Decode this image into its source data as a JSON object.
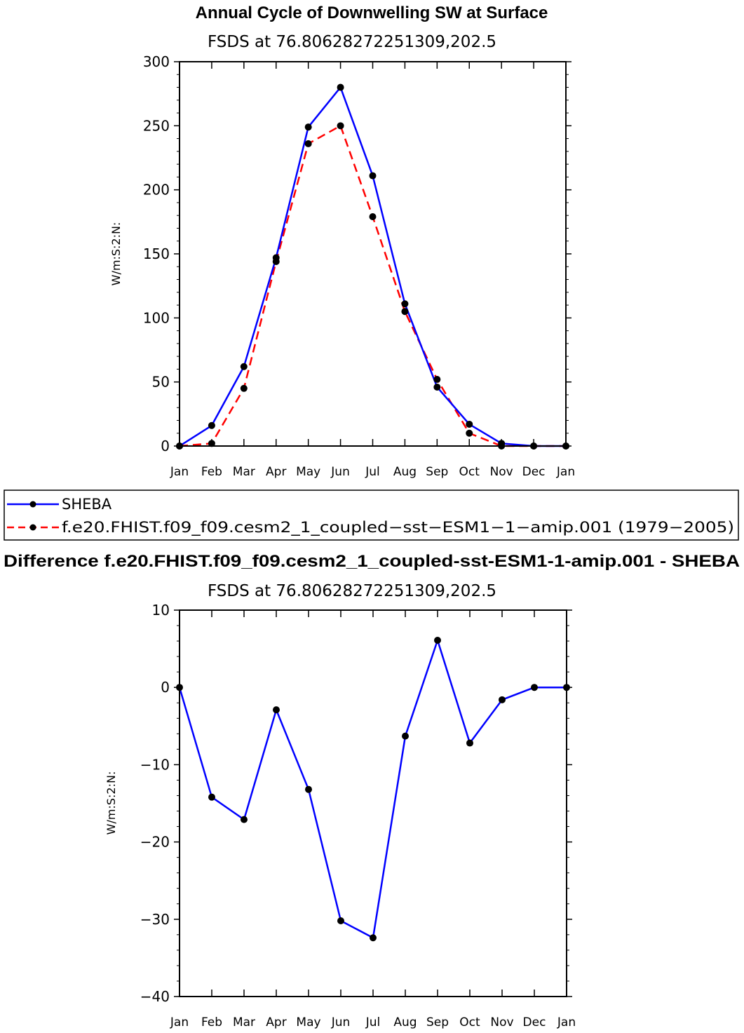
{
  "chart_data": [
    {
      "type": "line",
      "title": "Annual Cycle of Downwelling SW at Surface",
      "subtitle": "FSDS at 76.80628272251309,202.5",
      "xlabel": "",
      "ylabel": "W/m:S:2:N:",
      "categories": [
        "Jan",
        "Feb",
        "Mar",
        "Apr",
        "May",
        "Jun",
        "Jul",
        "Aug",
        "Sep",
        "Oct",
        "Nov",
        "Dec",
        "Jan"
      ],
      "ylim": [
        0,
        300
      ],
      "yticks": [
        0,
        50,
        100,
        150,
        200,
        250,
        300
      ],
      "ytick_labels": [
        "0",
        "50",
        "100",
        "150",
        "200",
        "250",
        "300"
      ],
      "series": [
        {
          "name": "SHEBA",
          "color": "#0000ff",
          "dash": "solid",
          "values": [
            0,
            16,
            62,
            147,
            249,
            280,
            211,
            111,
            46,
            17,
            2,
            0,
            0
          ]
        },
        {
          "name": "f.e20.FHIST.f09_f09.cesm2_1_coupled-sst-ESM1-1-amip.001 (1979-2005)",
          "color": "#ff0000",
          "dash": "dashed",
          "values": [
            0,
            2,
            45,
            144,
            236,
            250,
            179,
            105,
            52,
            10,
            0,
            0,
            0
          ]
        }
      ],
      "legend": {
        "placement": "below",
        "entries": [
          "SHEBA",
          "f.e20.FHIST.f09_f09.cesm2_1_coupled−sst−ESM1−1−amip.001 (1979−2005)"
        ]
      }
    },
    {
      "type": "line",
      "title": "Difference f.e20.FHIST.f09_f09.cesm2_1_coupled-sst-ESM1-1-amip.001 - SHEBA",
      "subtitle": "FSDS at 76.80628272251309,202.5",
      "xlabel": "",
      "ylabel": "W/m:S:2:N:",
      "categories": [
        "Jan",
        "Feb",
        "Mar",
        "Apr",
        "May",
        "Jun",
        "Jul",
        "Aug",
        "Sep",
        "Oct",
        "Nov",
        "Dec",
        "Jan"
      ],
      "ylim": [
        -40,
        10
      ],
      "yticks": [
        -40,
        -30,
        -20,
        -10,
        0,
        10
      ],
      "ytick_labels": [
        "−40",
        "−30",
        "−20",
        "−10",
        "0",
        "10"
      ],
      "series": [
        {
          "name": "Difference",
          "color": "#0000ff",
          "dash": "solid",
          "values": [
            0,
            -14.2,
            -17.1,
            -2.9,
            -13.2,
            -30.2,
            -32.4,
            -6.3,
            6.1,
            -7.2,
            -1.6,
            0,
            0
          ]
        }
      ]
    }
  ],
  "colors": {
    "marker": "#000000",
    "frame": "#000000"
  }
}
